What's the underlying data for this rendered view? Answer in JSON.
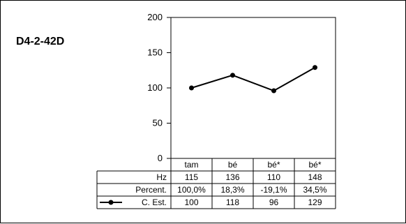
{
  "chart_data": {
    "type": "line",
    "title": "D4-2-42D",
    "categories": [
      "tam",
      "bé",
      "bé*",
      "bé*"
    ],
    "ylim": [
      0,
      200
    ],
    "yticks": [
      0,
      50,
      100,
      150,
      200
    ],
    "grid": false,
    "series": [
      {
        "name": "C. Est.",
        "values": [
          100,
          118,
          96,
          129
        ],
        "color": "#000000",
        "marker": "circle"
      }
    ],
    "table": {
      "rows": [
        {
          "label": "Hz",
          "values": [
            "115",
            "136",
            "110",
            "148"
          ]
        },
        {
          "label": "Percent.",
          "values": [
            "100,0%",
            "18,3%",
            "-19,1%",
            "34,5%"
          ]
        },
        {
          "label": "C. Est.",
          "values": [
            "100",
            "118",
            "96",
            "129"
          ],
          "legend": true
        }
      ]
    }
  }
}
